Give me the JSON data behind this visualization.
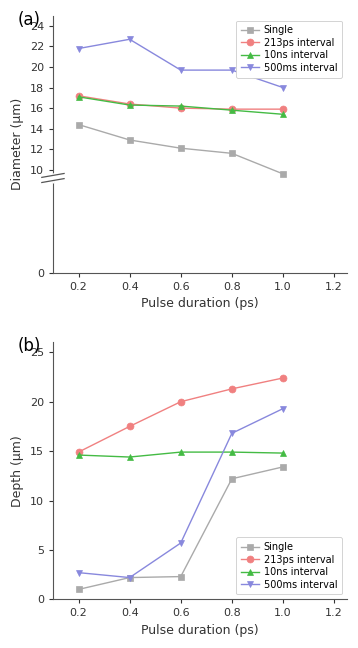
{
  "x": [
    0.2,
    0.4,
    0.6,
    0.8,
    1.0
  ],
  "panel_a": {
    "title": "(a)",
    "ylabel": "Diameter (μm)",
    "xlabel": "Pulse duration (ps)",
    "ylim": [
      0,
      25
    ],
    "yticks": [
      0,
      10,
      12,
      14,
      16,
      18,
      20,
      22,
      24
    ],
    "yticklabels": [
      "0",
      "10",
      "12",
      "14",
      "16",
      "18",
      "20",
      "22",
      "24"
    ],
    "xlim": [
      0.1,
      1.25
    ],
    "xticks": [
      0.2,
      0.4,
      0.6,
      0.8,
      1.0,
      1.2
    ],
    "series": {
      "Single": {
        "y": [
          14.4,
          12.9,
          12.1,
          11.6,
          9.6
        ],
        "color": "#aaaaaa",
        "marker": "s",
        "linestyle": "-"
      },
      "213ps interval": {
        "y": [
          17.2,
          16.4,
          16.0,
          15.9,
          15.9
        ],
        "color": "#f08080",
        "marker": "o",
        "linestyle": "-"
      },
      "10ns interval": {
        "y": [
          17.1,
          16.3,
          16.2,
          15.8,
          15.4
        ],
        "color": "#44bb44",
        "marker": "^",
        "linestyle": "-"
      },
      "500ms interval": {
        "y": [
          21.8,
          22.7,
          19.7,
          19.7,
          18.0
        ],
        "color": "#8888dd",
        "marker": "v",
        "linestyle": "-"
      }
    },
    "series_order": [
      "Single",
      "213ps interval",
      "10ns interval",
      "500ms interval"
    ]
  },
  "panel_b": {
    "title": "(b)",
    "ylabel": "Depth (μm)",
    "xlabel": "Pulse duration (ps)",
    "ylim": [
      0,
      26
    ],
    "yticks": [
      0,
      5,
      10,
      15,
      20,
      25
    ],
    "yticklabels": [
      "0",
      "5",
      "10",
      "15",
      "20",
      "25"
    ],
    "xlim": [
      0.1,
      1.25
    ],
    "xticks": [
      0.2,
      0.4,
      0.6,
      0.8,
      1.0,
      1.2
    ],
    "series": {
      "Single": {
        "y": [
          1.0,
          2.2,
          2.3,
          12.2,
          13.4
        ],
        "color": "#aaaaaa",
        "marker": "s",
        "linestyle": "-"
      },
      "213ps interval": {
        "y": [
          14.9,
          17.5,
          20.0,
          21.3,
          22.4
        ],
        "color": "#f08080",
        "marker": "o",
        "linestyle": "-"
      },
      "10ns interval": {
        "y": [
          14.6,
          14.4,
          14.9,
          14.9,
          14.8
        ],
        "color": "#44bb44",
        "marker": "^",
        "linestyle": "-"
      },
      "500ms interval": {
        "y": [
          2.7,
          2.2,
          5.7,
          16.8,
          19.3
        ],
        "color": "#8888dd",
        "marker": "v",
        "linestyle": "-"
      }
    },
    "series_order": [
      "Single",
      "213ps interval",
      "10ns interval",
      "500ms interval"
    ]
  },
  "markersize": 5,
  "linewidth": 1.0,
  "background_color": "#ffffff"
}
